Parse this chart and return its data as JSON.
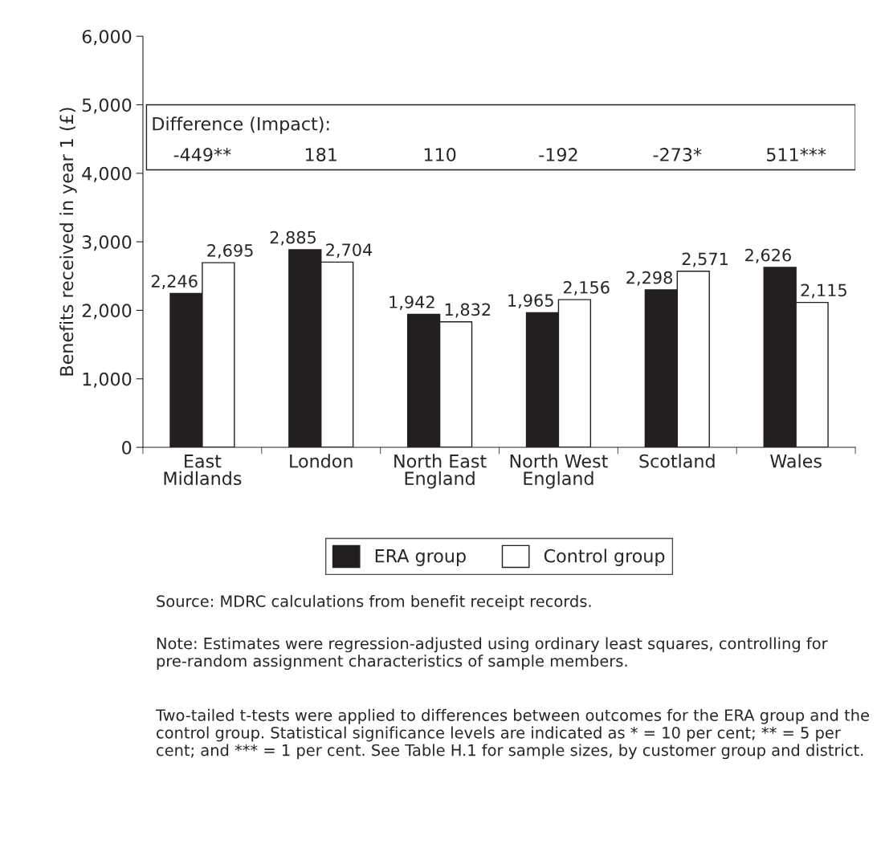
{
  "chart_data": {
    "type": "bar",
    "ylabel": "Benefits received in year 1 (£)",
    "categories": [
      "East\nMidlands",
      "London",
      "North East\nEngland",
      "North West\nEngland",
      "Scotland",
      "Wales"
    ],
    "series": [
      {
        "name": "ERA group",
        "color": "#231f20",
        "values": [
          2246,
          2885,
          1942,
          1965,
          2298,
          2626
        ],
        "value_labels": [
          "2,246",
          "2,885",
          "1,942",
          "1,965",
          "2,298",
          "2,626"
        ]
      },
      {
        "name": "Control group",
        "color": "#ffffff",
        "values": [
          2695,
          2704,
          1832,
          2156,
          2571,
          2115
        ],
        "value_labels": [
          "2,695",
          "2,704",
          "1,832",
          "2,156",
          "2,571",
          "2,115"
        ]
      }
    ],
    "ylim": [
      0,
      6000
    ],
    "yticks": [
      {
        "value": 0,
        "label": "0"
      },
      {
        "value": 1000,
        "label": "1,000"
      },
      {
        "value": 2000,
        "label": "2,000"
      },
      {
        "value": 3000,
        "label": "3,000"
      },
      {
        "value": 4000,
        "label": "4,000"
      },
      {
        "value": 5000,
        "label": "5,000"
      },
      {
        "value": 6000,
        "label": "6,000"
      }
    ],
    "legend": "bottom",
    "grid": false,
    "annotations": [
      "Difference (Impact):",
      "-449**",
      "181",
      "110",
      "-192",
      "-273*",
      "511***",
      "Source: MDRC calculations from benefit receipt records.",
      "Note: Estimates were regression-adjusted using ordinary least squares, controlling for pre-random assignment characteristics of sample members.",
      "Two-tailed t-tests were applied to differences between outcomes for the ERA group and the control group. Statistical significance levels are indicated as * = 10 per cent; ** = 5 per cent; and *** = 1 per cent. See Table H.1 for sample sizes, by customer group and district."
    ]
  }
}
